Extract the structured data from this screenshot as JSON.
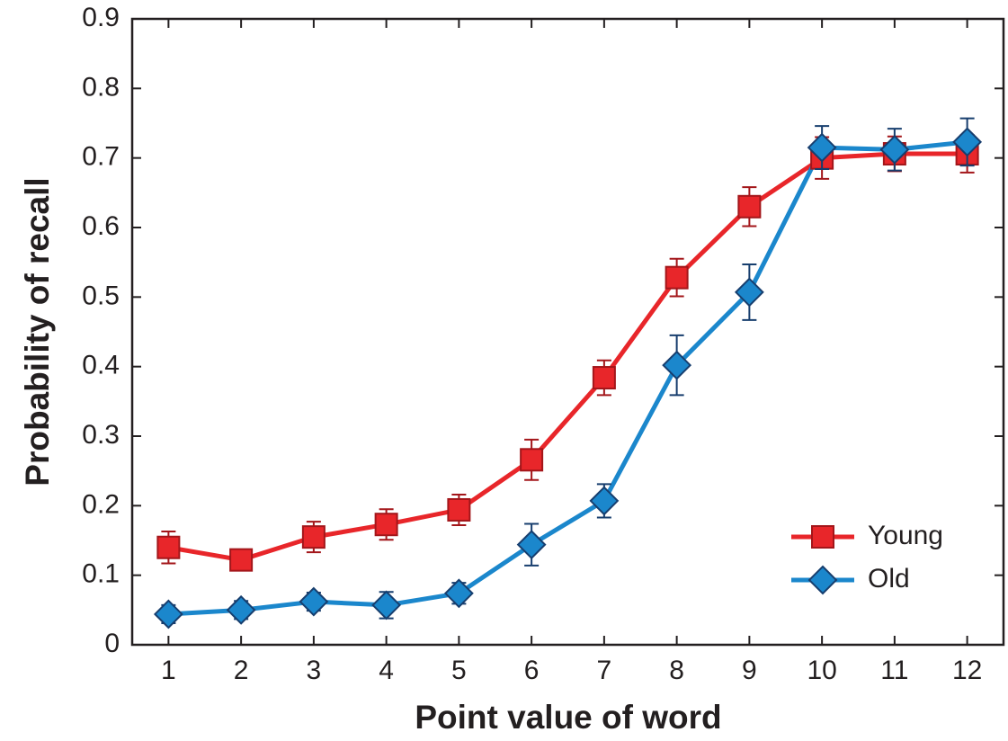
{
  "chart_data": {
    "type": "line",
    "xlabel": "Point value of word",
    "ylabel": "Probability of recall",
    "x": [
      1,
      2,
      3,
      4,
      5,
      6,
      7,
      8,
      9,
      10,
      11,
      12
    ],
    "series": [
      {
        "name": "Young",
        "color": "#e8262a",
        "edge": "#a3161a",
        "marker": "square",
        "values": [
          0.14,
          0.122,
          0.155,
          0.173,
          0.194,
          0.266,
          0.384,
          0.528,
          0.63,
          0.7,
          0.706,
          0.706
        ],
        "errors": [
          0.023,
          0.015,
          0.022,
          0.022,
          0.022,
          0.029,
          0.025,
          0.027,
          0.028,
          0.03,
          0.025,
          0.027
        ]
      },
      {
        "name": "Old",
        "color": "#1b87cc",
        "edge": "#173e6e",
        "marker": "diamond",
        "values": [
          0.044,
          0.05,
          0.062,
          0.057,
          0.074,
          0.144,
          0.207,
          0.402,
          0.507,
          0.715,
          0.712,
          0.723
        ],
        "errors": [
          0.013,
          0.013,
          0.013,
          0.019,
          0.015,
          0.03,
          0.024,
          0.043,
          0.04,
          0.031,
          0.03,
          0.034
        ]
      }
    ],
    "xlim": [
      0.5,
      12.5
    ],
    "ylim": [
      0,
      0.9
    ],
    "xticks": [
      1,
      2,
      3,
      4,
      5,
      6,
      7,
      8,
      9,
      10,
      11,
      12
    ],
    "yticks": [
      0,
      0.1,
      0.2,
      0.3,
      0.4,
      0.5,
      0.6,
      0.7,
      0.8,
      0.9
    ],
    "grid": false,
    "legend": "lower right"
  }
}
